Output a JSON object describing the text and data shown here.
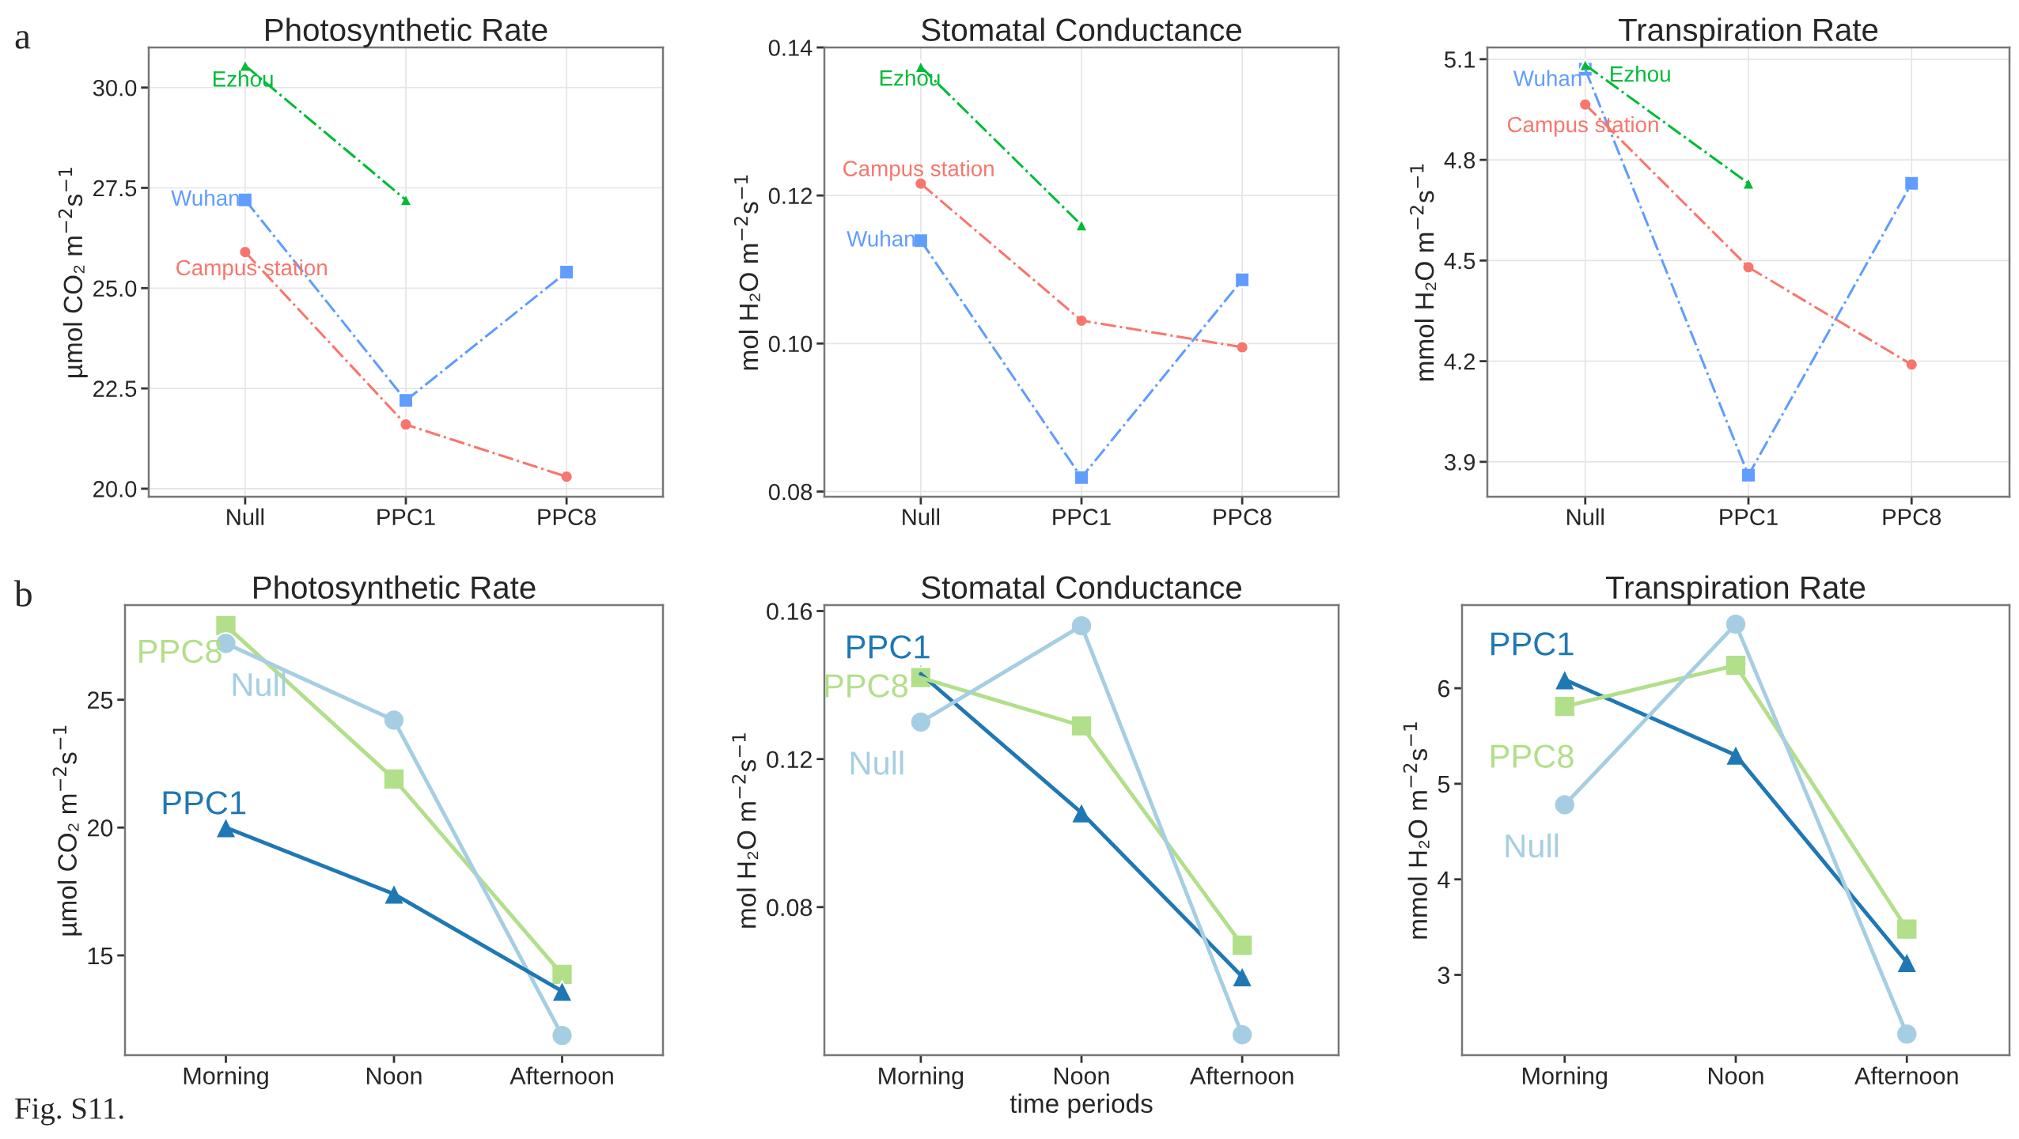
{
  "chart_data": [
    {
      "type": "line",
      "title": "Photosynthetic Rate",
      "ylabel": "µmol CO₂ m$^{−2}$s$^{−1}$",
      "categories": [
        "Null",
        "PPC1",
        "PPC8"
      ],
      "ylim": [
        19.8,
        31.0
      ],
      "yticks": [
        {
          "value": 20,
          "label": "20.0"
        },
        22.5,
        {
          "value": 25,
          "label": "25.0"
        },
        27.5,
        {
          "value": 30,
          "label": "30.0"
        }
      ],
      "grid": true,
      "line_style": "dashdot",
      "annotations": [
        "a"
      ],
      "series": [
        {
          "name": "Ezhou",
          "color": "#00ba38",
          "marker": "triangle",
          "values": [
            30.55,
            27.2,
            null
          ]
        },
        {
          "name": "Wuhan",
          "color": "#619cff",
          "marker": "square",
          "values": [
            27.2,
            22.2,
            25.4
          ]
        },
        {
          "name": "Campus station",
          "color": "#f8766d",
          "marker": "circle",
          "values": [
            25.9,
            21.6,
            20.3
          ]
        }
      ]
    },
    {
      "type": "line",
      "title": "Stomatal Conductance",
      "ylabel": "mol H₂O m$^{−2}$s$^{−1}$",
      "categories": [
        "Null",
        "PPC1",
        "PPC8"
      ],
      "ylim": [
        0.0793,
        0.14
      ],
      "yticks": [
        0.08,
        {
          "value": 0.1,
          "label": "0.10"
        },
        0.12,
        0.14
      ],
      "grid": true,
      "line_style": "dashdot",
      "series": [
        {
          "name": "Ezhou",
          "color": "#00ba38",
          "marker": "triangle",
          "values": [
            0.1374,
            0.116,
            null
          ]
        },
        {
          "name": "Campus station",
          "color": "#f8766d",
          "marker": "circle",
          "values": [
            0.1216,
            0.1031,
            0.0995
          ]
        },
        {
          "name": "Wuhan",
          "color": "#619cff",
          "marker": "square",
          "values": [
            0.1139,
            0.0819,
            0.1086
          ]
        }
      ]
    },
    {
      "type": "line",
      "title": "Transpiration Rate",
      "ylabel": "mmol H₂O m$^{−2}$s$^{−1}$",
      "categories": [
        "Null",
        "PPC1",
        "PPC8"
      ],
      "ylim": [
        3.796,
        5.135
      ],
      "yticks": [
        3.9,
        4.2,
        4.5,
        4.8,
        5.1
      ],
      "grid": true,
      "line_style": "dashdot",
      "series": [
        {
          "name": "Wuhan",
          "color": "#619cff",
          "marker": "square",
          "values": [
            5.07,
            3.86,
            4.73
          ]
        },
        {
          "name": "Ezhou",
          "color": "#00ba38",
          "marker": "triangle",
          "values": [
            5.083,
            4.73,
            null
          ]
        },
        {
          "name": "Campus station",
          "color": "#f8766d",
          "marker": "circle",
          "values": [
            4.965,
            4.48,
            4.19
          ]
        }
      ]
    },
    {
      "type": "line",
      "title": "Photosynthetic Rate",
      "ylabel": "µmol CO₂ m$^{−2}$s$^{−1}$",
      "categories": [
        "Morning",
        "Noon",
        "Afternoon"
      ],
      "ylim": [
        11.1,
        28.7
      ],
      "yticks": [
        15,
        20,
        25
      ],
      "line_style": "solid",
      "annotations": [
        "b",
        "Fig. S11."
      ],
      "series": [
        {
          "name": "PPC8",
          "color": "#b2df8a",
          "marker": "square",
          "values": [
            27.9,
            21.9,
            14.26
          ]
        },
        {
          "name": "Null",
          "color": "#a6cee3",
          "marker": "circle",
          "values": [
            27.2,
            24.2,
            11.87
          ]
        },
        {
          "name": "PPC1",
          "color": "#1f78b4",
          "marker": "triangle",
          "values": [
            20.0,
            17.4,
            13.6
          ]
        }
      ]
    },
    {
      "type": "line",
      "title": "Stomatal Conductance",
      "ylabel": "mol H₂O m$^{−2}$s$^{−1}$",
      "xlabel": "time periods",
      "categories": [
        "Morning",
        "Noon",
        "Afternoon"
      ],
      "ylim": [
        0.04,
        0.1616
      ],
      "yticks": [
        0.08,
        0.12,
        0.16
      ],
      "line_style": "solid",
      "series": [
        {
          "name": "PPC1",
          "color": "#1f78b4",
          "marker": "triangle",
          "values": [
            0.143,
            0.1055,
            0.0612
          ]
        },
        {
          "name": "PPC8",
          "color": "#b2df8a",
          "marker": "square",
          "values": [
            0.142,
            0.129,
            0.0697
          ]
        },
        {
          "name": "Null",
          "color": "#a6cee3",
          "marker": "circle",
          "values": [
            0.13,
            0.156,
            0.0455
          ]
        }
      ]
    },
    {
      "type": "line",
      "title": "Transpiration Rate",
      "ylabel": "mmol H₂O m$^{−2}$s$^{−1}$",
      "categories": [
        "Morning",
        "Noon",
        "Afternoon"
      ],
      "ylim": [
        2.16,
        6.87
      ],
      "yticks": [
        3,
        4,
        5,
        6
      ],
      "line_style": "solid",
      "series": [
        {
          "name": "PPC1",
          "color": "#1f78b4",
          "marker": "triangle",
          "values": [
            6.09,
            5.3,
            3.13
          ]
        },
        {
          "name": "PPC8",
          "color": "#b2df8a",
          "marker": "square",
          "values": [
            5.81,
            6.24,
            3.48
          ]
        },
        {
          "name": "Null",
          "color": "#a6cee3",
          "marker": "circle",
          "values": [
            4.78,
            6.67,
            2.38
          ]
        }
      ]
    }
  ]
}
